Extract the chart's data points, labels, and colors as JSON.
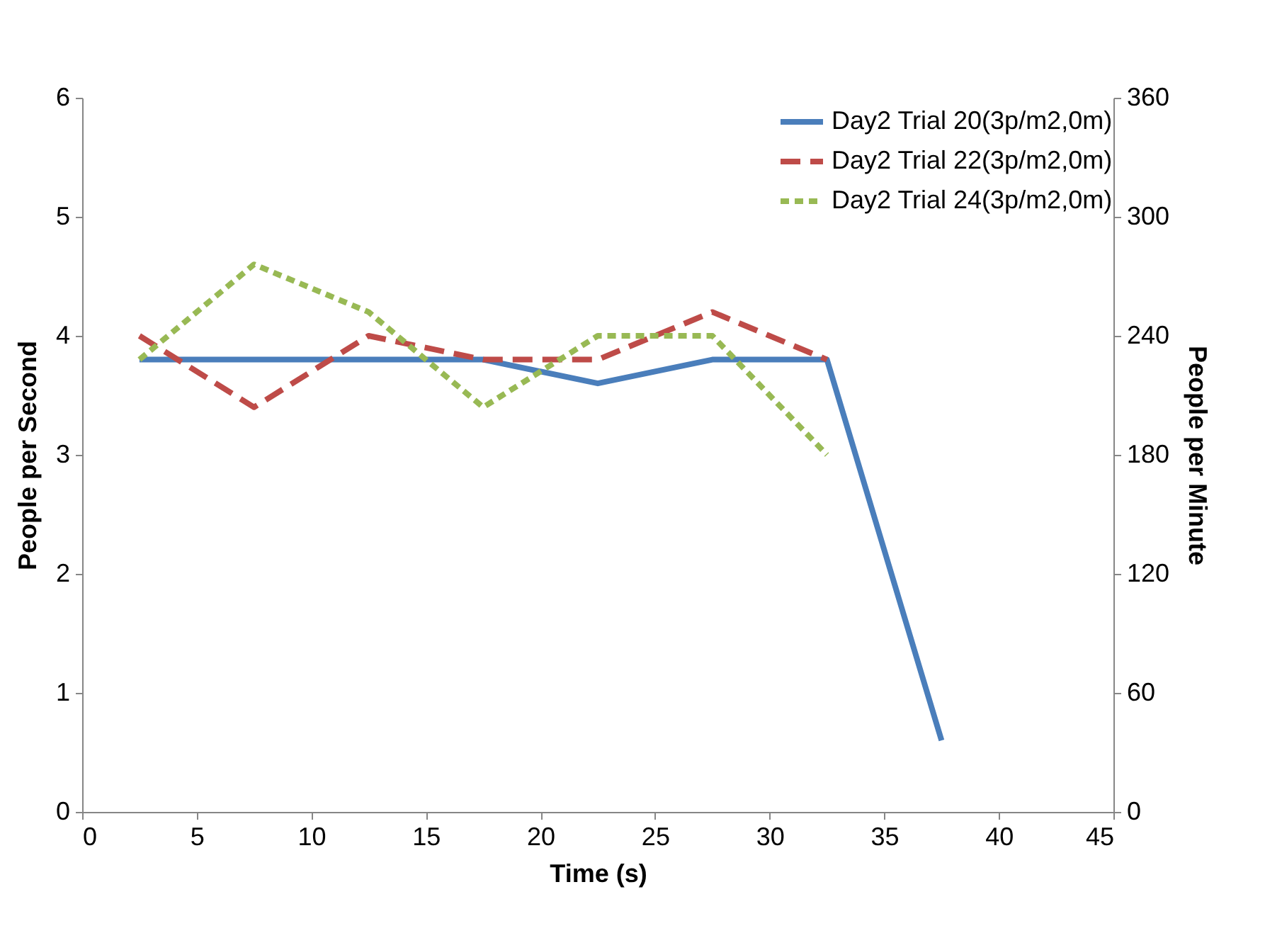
{
  "chart_data": {
    "type": "line",
    "xlabel": "Time (s)",
    "ylabel": "People per Second",
    "y2label": "People per Minute",
    "xlim": [
      0,
      45
    ],
    "xticks": [
      0,
      5,
      10,
      15,
      20,
      25,
      30,
      35,
      40,
      45
    ],
    "ylim": [
      0,
      6
    ],
    "yticks": [
      0,
      1,
      2,
      3,
      4,
      5,
      6
    ],
    "y2lim": [
      0,
      360
    ],
    "y2ticks": [
      0,
      60,
      120,
      180,
      240,
      300,
      360
    ],
    "grid": false,
    "legend": "top right",
    "marker": "none",
    "series": [
      {
        "name": "Day2 Trial 20(3p/m2,0m)",
        "color": "#4a7ebb",
        "line_style": "solid",
        "x": [
          2.5,
          7.5,
          12.5,
          17.5,
          22.5,
          27.5,
          32.5,
          37.5
        ],
        "values": [
          3.8,
          3.8,
          3.8,
          3.8,
          3.6,
          3.8,
          3.8,
          0.6
        ]
      },
      {
        "name": "Day2 Trial 22(3p/m2,0m)",
        "color": "#be4b48",
        "line_style": "dashed",
        "x": [
          2.5,
          7.5,
          12.5,
          17.5,
          22.5,
          27.5,
          32.5
        ],
        "values": [
          4.0,
          3.4,
          4.0,
          3.8,
          3.8,
          4.2,
          3.8
        ]
      },
      {
        "name": "Day2 Trial 24(3p/m2,0m)",
        "color": "#98b954",
        "line_style": "dotted",
        "x": [
          2.5,
          7.5,
          12.5,
          17.5,
          22.5,
          27.5,
          32.5
        ],
        "values": [
          3.8,
          4.6,
          4.2,
          3.4,
          4.0,
          4.0,
          3.0
        ]
      }
    ]
  }
}
